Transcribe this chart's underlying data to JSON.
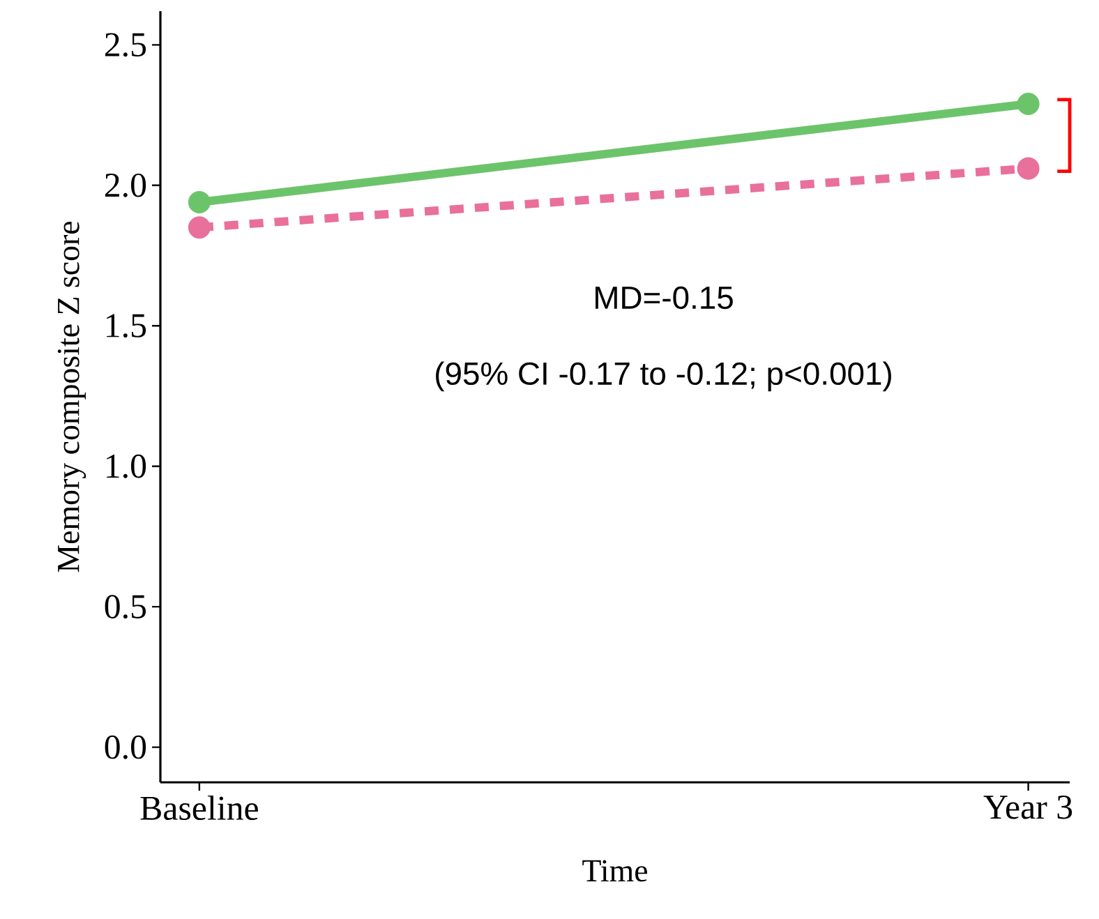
{
  "chart_data": {
    "type": "line",
    "xlabel": "Time",
    "ylabel": "Memory composite Z score",
    "categories": [
      "Baseline",
      "Year 3"
    ],
    "series": [
      {
        "color": "#6cc46a",
        "values": [
          1.94,
          2.29
        ],
        "line_style": "solid"
      },
      {
        "color": "#e8709a",
        "values": [
          1.85,
          2.06
        ],
        "line_style": "dashed"
      }
    ],
    "ylim": [
      -0.125,
      2.62
    ],
    "yticks": [
      {
        "value": 0,
        "label": "0.0"
      },
      {
        "value": 0.5,
        "label": "0.5"
      },
      {
        "value": 1,
        "label": "1.0"
      },
      {
        "value": 1.5,
        "label": "1.5"
      },
      {
        "value": 2,
        "label": "2.0"
      },
      {
        "value": 2.5,
        "label": "2.5"
      }
    ],
    "marker": "circle",
    "grid": false,
    "annotations": [
      "MD=-0.15",
      "(95% CI -0.17 to -0.12; p<0.001)"
    ]
  }
}
